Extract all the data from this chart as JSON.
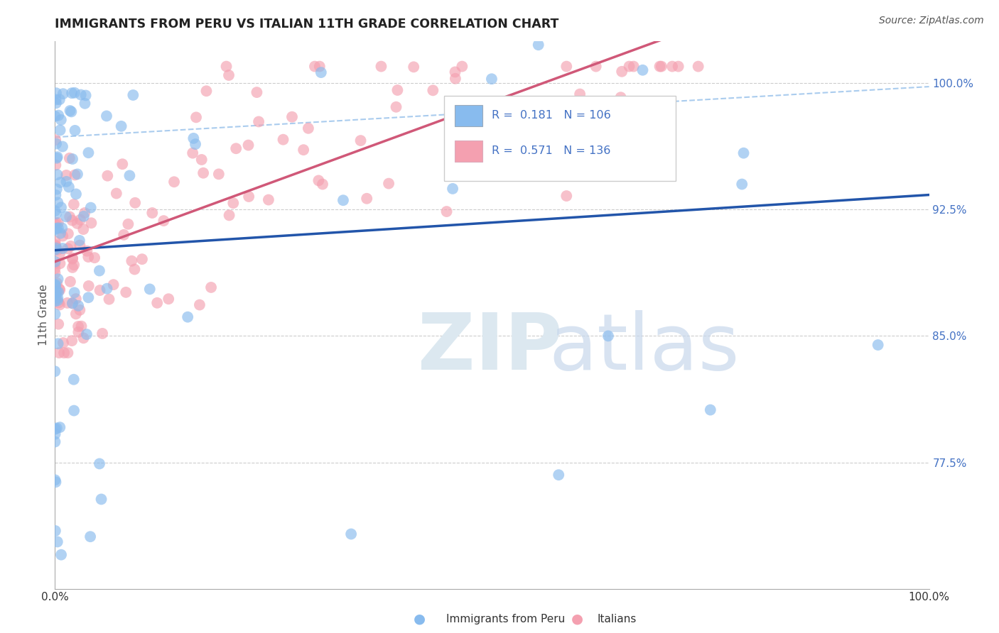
{
  "title": "IMMIGRANTS FROM PERU VS ITALIAN 11TH GRADE CORRELATION CHART",
  "source": "Source: ZipAtlas.com",
  "ylabel": "11th Grade",
  "x_label_bottom": "Immigrants from Peru",
  "x_label_bottom2": "Italians",
  "right_y_ticks": [
    0.775,
    0.85,
    0.925,
    1.0
  ],
  "right_y_tick_labels": [
    "77.5%",
    "85.0%",
    "92.5%",
    "100.0%"
  ],
  "blue_R": 0.181,
  "blue_N": 106,
  "pink_R": 0.571,
  "pink_N": 136,
  "blue_color": "#88BBEE",
  "pink_color": "#F4A0B0",
  "blue_line_color": "#2255AA",
  "pink_line_color": "#D05878",
  "dashed_line_color": "#AACCEE",
  "xmin": 0.0,
  "xmax": 1.0,
  "ymin": 0.7,
  "ymax": 1.025,
  "blue_seed": 42,
  "pink_seed": 99
}
